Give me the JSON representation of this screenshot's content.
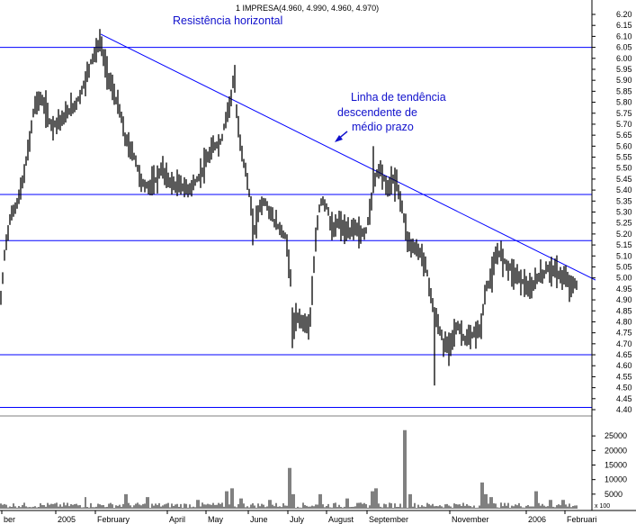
{
  "colors": {
    "line": "#0000ff",
    "annotation": "#1010cc",
    "frame": "#000000",
    "background": "#ffffff"
  },
  "chart_data": {
    "type": "ohlc",
    "title": "1 IMPRESA(4.960, 4.990, 4.960, 4.970)",
    "price_axis": {
      "ylim": [
        4.35,
        6.22
      ],
      "ticks": [
        "6.20",
        "6.15",
        "6.10",
        "6.05",
        "6.00",
        "5.95",
        "5.90",
        "5.85",
        "5.80",
        "5.75",
        "5.70",
        "5.65",
        "5.60",
        "5.55",
        "5.50",
        "5.45",
        "5.40",
        "5.35",
        "5.30",
        "5.25",
        "5.20",
        "5.15",
        "5.10",
        "5.05",
        "5.00",
        "4.95",
        "4.90",
        "4.85",
        "4.80",
        "4.75",
        "4.70",
        "4.65",
        "4.60",
        "4.55",
        "4.50",
        "4.45",
        "4.40"
      ]
    },
    "volume_axis": {
      "ylim": [
        0,
        30000
      ],
      "ticks": [
        "25000",
        "20000",
        "15000",
        "10000",
        "5000"
      ],
      "unit_label": "x 100"
    },
    "x_axis": {
      "labels": [
        "ber",
        "2005",
        "February",
        "April",
        "May",
        "June",
        "July",
        "August",
        "September",
        "November",
        "2006",
        "Februari"
      ]
    },
    "horizontal_lines": [
      6.05,
      5.38,
      5.17,
      4.65,
      4.41
    ],
    "trendline": {
      "start": [
        "February 2005",
        6.11
      ],
      "end": [
        "February 2006",
        5.06
      ]
    },
    "annotations": {
      "resistance": "Resistência horizontal",
      "trend_1": "Linha de tendência",
      "trend_2": "descendente de",
      "trend_3": "médio prazo"
    },
    "price_anchors": [
      [
        0,
        4.85
      ],
      [
        6,
        5.15
      ],
      [
        12,
        5.28
      ],
      [
        20,
        5.35
      ],
      [
        26,
        5.45
      ],
      [
        32,
        5.6
      ],
      [
        38,
        5.78
      ],
      [
        44,
        5.82
      ],
      [
        50,
        5.78
      ],
      [
        56,
        5.7
      ],
      [
        60,
        5.7
      ],
      [
        66,
        5.72
      ],
      [
        70,
        5.72
      ],
      [
        76,
        5.76
      ],
      [
        82,
        5.78
      ],
      [
        88,
        5.82
      ],
      [
        95,
        5.9
      ],
      [
        102,
        6.0
      ],
      [
        108,
        6.04
      ],
      [
        112,
        6.09
      ],
      [
        116,
        5.98
      ],
      [
        122,
        5.9
      ],
      [
        128,
        5.82
      ],
      [
        134,
        5.75
      ],
      [
        138,
        5.65
      ],
      [
        143,
        5.6
      ],
      [
        150,
        5.55
      ],
      [
        156,
        5.45
      ],
      [
        160,
        5.42
      ],
      [
        168,
        5.42
      ],
      [
        174,
        5.45
      ],
      [
        180,
        5.5
      ],
      [
        186,
        5.45
      ],
      [
        194,
        5.42
      ],
      [
        202,
        5.42
      ],
      [
        208,
        5.4
      ],
      [
        214,
        5.42
      ],
      [
        220,
        5.45
      ],
      [
        226,
        5.5
      ],
      [
        232,
        5.55
      ],
      [
        238,
        5.6
      ],
      [
        246,
        5.62
      ],
      [
        252,
        5.75
      ],
      [
        256,
        5.8
      ],
      [
        260,
        5.92
      ],
      [
        264,
        5.7
      ],
      [
        270,
        5.55
      ],
      [
        276,
        5.42
      ],
      [
        282,
        5.2
      ],
      [
        288,
        5.32
      ],
      [
        294,
        5.35
      ],
      [
        300,
        5.3
      ],
      [
        306,
        5.25
      ],
      [
        312,
        5.22
      ],
      [
        318,
        5.18
      ],
      [
        322,
        5.05
      ],
      [
        326,
        4.78
      ],
      [
        332,
        4.82
      ],
      [
        338,
        4.8
      ],
      [
        344,
        4.78
      ],
      [
        350,
        5.1
      ],
      [
        354,
        5.3
      ],
      [
        358,
        5.36
      ],
      [
        364,
        5.32
      ],
      [
        370,
        5.2
      ],
      [
        376,
        5.26
      ],
      [
        382,
        5.22
      ],
      [
        388,
        5.2
      ],
      [
        394,
        5.24
      ],
      [
        400,
        5.2
      ],
      [
        406,
        5.2
      ],
      [
        412,
        5.32
      ],
      [
        418,
        5.48
      ],
      [
        424,
        5.5
      ],
      [
        430,
        5.4
      ],
      [
        436,
        5.45
      ],
      [
        442,
        5.42
      ],
      [
        448,
        5.3
      ],
      [
        454,
        5.16
      ],
      [
        460,
        5.14
      ],
      [
        466,
        5.12
      ],
      [
        472,
        5.08
      ],
      [
        478,
        4.95
      ],
      [
        482,
        4.85
      ],
      [
        486,
        4.8
      ],
      [
        492,
        4.72
      ],
      [
        498,
        4.68
      ],
      [
        504,
        4.75
      ],
      [
        510,
        4.78
      ],
      [
        516,
        4.72
      ],
      [
        522,
        4.72
      ],
      [
        528,
        4.75
      ],
      [
        534,
        4.76
      ],
      [
        540,
        4.95
      ],
      [
        546,
        5.0
      ],
      [
        552,
        5.1
      ],
      [
        556,
        5.12
      ],
      [
        560,
        5.08
      ],
      [
        566,
        5.05
      ],
      [
        572,
        5.02
      ],
      [
        578,
        5.0
      ],
      [
        584,
        4.97
      ],
      [
        590,
        4.93
      ],
      [
        596,
        5.0
      ],
      [
        602,
        5.01
      ],
      [
        608,
        5.04
      ],
      [
        614,
        5.04
      ],
      [
        620,
        5.02
      ],
      [
        626,
        5.0
      ],
      [
        632,
        4.98
      ],
      [
        636,
        4.96
      ],
      [
        640,
        4.97
      ]
    ],
    "volume_spikes": [
      [
        95,
        4000
      ],
      [
        140,
        5000
      ],
      [
        164,
        4000
      ],
      [
        220,
        3000
      ],
      [
        252,
        6000
      ],
      [
        258,
        7000
      ],
      [
        268,
        3500
      ],
      [
        300,
        3000
      ],
      [
        322,
        14000
      ],
      [
        326,
        5000
      ],
      [
        356,
        5000
      ],
      [
        386,
        3500
      ],
      [
        414,
        6000
      ],
      [
        418,
        7000
      ],
      [
        450,
        27000
      ],
      [
        456,
        5000
      ],
      [
        536,
        9000
      ],
      [
        540,
        5000
      ],
      [
        546,
        4000
      ],
      [
        596,
        6000
      ],
      [
        612,
        3000
      ],
      [
        626,
        3000
      ]
    ],
    "grid": false
  }
}
